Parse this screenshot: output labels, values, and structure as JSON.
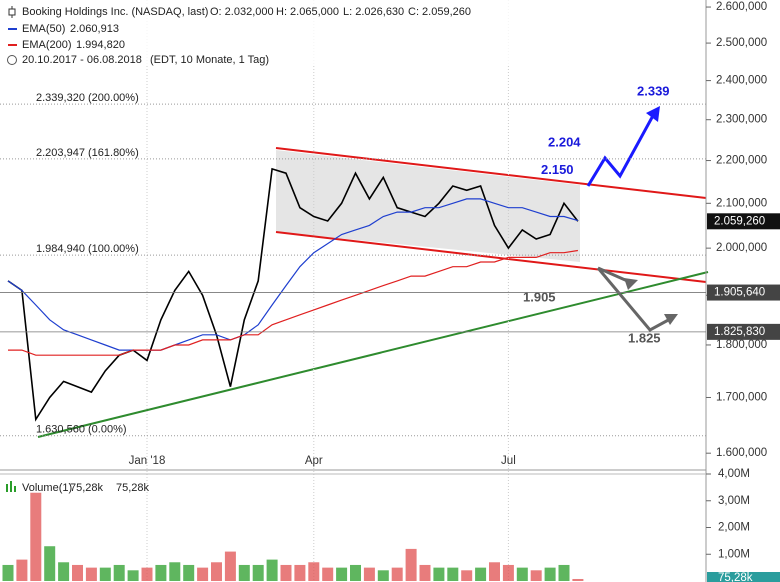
{
  "chart_data": [
    {
      "type": "line",
      "log_scale": true,
      "header": {
        "ohlc": [
          "O: 2.032,000",
          "H: 2.065,000",
          "L: 2.026,630",
          "C: 2.059,260"
        ],
        "period": "20.10.2017 - 06.08.2018",
        "details": "(EDT, 10 Monate, 1 Tag)"
      },
      "categories": [
        null,
        null,
        null,
        null,
        null,
        null,
        null,
        null,
        null,
        null,
        "Jan '18",
        null,
        null,
        null,
        null,
        null,
        null,
        null,
        null,
        null,
        null,
        null,
        "Apr",
        null,
        null,
        null,
        null,
        null,
        null,
        null,
        null,
        null,
        null,
        null,
        null,
        null,
        "Jul",
        null,
        null,
        null,
        null,
        null
      ],
      "series": [
        {
          "name": "Booking Holdings Inc. (NASDAQ, last)",
          "color": "#000000",
          "values": [
            1930000,
            1910000,
            1660000,
            1700000,
            1730000,
            1720000,
            1710000,
            1750000,
            1780000,
            1790000,
            1770000,
            1850000,
            1910000,
            1950000,
            1900000,
            1820000,
            1720000,
            1850000,
            1930000,
            2180000,
            2170000,
            2090000,
            2070000,
            2060000,
            2100000,
            2170000,
            2110000,
            2160000,
            2090000,
            2080000,
            2070000,
            2100000,
            2140000,
            2130000,
            2140000,
            2050000,
            2000000,
            2040000,
            2020000,
            2030000,
            2100000,
            2059260
          ]
        },
        {
          "name": "EMA(50)",
          "last_label": "2.060,913",
          "color": "#1f3fcf",
          "values": [
            1930000,
            1910000,
            1880000,
            1850000,
            1830000,
            1820000,
            1810000,
            1800000,
            1790000,
            1790000,
            1790000,
            1790000,
            1800000,
            1810000,
            1820000,
            1820000,
            1810000,
            1820000,
            1840000,
            1880000,
            1920000,
            1960000,
            1990000,
            2010000,
            2030000,
            2040000,
            2050000,
            2070000,
            2080000,
            2080000,
            2090000,
            2090000,
            2100000,
            2110000,
            2110000,
            2100000,
            2090000,
            2090000,
            2080000,
            2070000,
            2070000,
            2060913
          ]
        },
        {
          "name": "EMA(200)",
          "last_label": "1.994,820",
          "color": "#e02020",
          "values": [
            1790000,
            1790000,
            1780000,
            1780000,
            1780000,
            1780000,
            1780000,
            1780000,
            1780000,
            1790000,
            1790000,
            1790000,
            1800000,
            1800000,
            1810000,
            1810000,
            1810000,
            1820000,
            1820000,
            1840000,
            1850000,
            1860000,
            1870000,
            1880000,
            1890000,
            1900000,
            1910000,
            1920000,
            1930000,
            1940000,
            1940000,
            1950000,
            1960000,
            1960000,
            1970000,
            1970000,
            1980000,
            1980000,
            1980000,
            1990000,
            1990000,
            1994820
          ]
        }
      ],
      "ylim": [
        1571000,
        2620000
      ],
      "yticks": [
        {
          "value": 1600000,
          "label": "1.600,000"
        },
        {
          "value": 1700000,
          "label": "1.700,000"
        },
        {
          "value": 1800000,
          "label": "1.800,000"
        },
        {
          "value": 1900000,
          "label": "1.900,000"
        },
        {
          "value": 2000000,
          "label": "2.000,000"
        },
        {
          "value": 2100000,
          "label": "2.100,000"
        },
        {
          "value": 2200000,
          "label": "2.200,000"
        },
        {
          "value": 2300000,
          "label": "2.300,000"
        },
        {
          "value": 2400000,
          "label": "2.400,000"
        },
        {
          "value": 2500000,
          "label": "2.500,000"
        },
        {
          "value": 2600000,
          "label": "2.600,000"
        }
      ],
      "levels": [
        {
          "value": 2339320,
          "label": "2.339,320 (200.00%)"
        },
        {
          "value": 2203947,
          "label": "2.203,947 (161.80%)"
        },
        {
          "value": 1984940,
          "label": "1.984,940 (100.00%)"
        },
        {
          "value": 1630560,
          "label": "1.630,560 (0.00%)"
        }
      ],
      "tags": [
        {
          "value": 2059260,
          "label": "2.059,260",
          "color": "#111111"
        },
        {
          "value": 1905640,
          "label": "1.905,640",
          "color": "#444444"
        },
        {
          "value": 1825830,
          "label": "1.825,830",
          "color": "#444444"
        }
      ],
      "annotations": [
        {
          "value": 2339000,
          "label": "2.339",
          "color": "#1a1adb"
        },
        {
          "value": 2204000,
          "label": "2.204",
          "color": "#1a1adb"
        },
        {
          "value": 2150000,
          "label": "2.150",
          "color": "#1a1adb"
        },
        {
          "value": 1905000,
          "label": "1.905",
          "color": "#555555"
        },
        {
          "value": 1825000,
          "label": "1.825",
          "color": "#555555"
        }
      ]
    },
    {
      "type": "bar",
      "series": [
        {
          "name": "Volume(1)"
        }
      ],
      "values": [
        0.6,
        0.8,
        3.3,
        1.3,
        0.7,
        0.6,
        0.5,
        0.5,
        0.6,
        0.4,
        0.5,
        0.6,
        0.7,
        0.6,
        0.5,
        0.7,
        1.1,
        0.6,
        0.6,
        0.8,
        0.6,
        0.6,
        0.7,
        0.5,
        0.5,
        0.6,
        0.5,
        0.4,
        0.5,
        1.2,
        0.6,
        0.5,
        0.5,
        0.4,
        0.5,
        0.7,
        0.6,
        0.5,
        0.4,
        0.5,
        0.6,
        0.07528
      ],
      "value_labels": [
        null,
        null,
        null,
        null,
        null,
        null,
        null,
        null,
        null,
        null,
        null,
        null,
        null,
        null,
        null,
        null,
        null,
        null,
        null,
        null,
        null,
        null,
        null,
        null,
        null,
        null,
        null,
        null,
        null,
        null,
        null,
        null,
        null,
        null,
        null,
        null,
        null,
        null,
        null,
        null,
        null,
        "75,28k"
      ],
      "colors": [
        "#2a9d2a",
        "#e05050"
      ],
      "ylim": [
        0,
        4.15
      ],
      "yticks": [
        {
          "value": 1,
          "label": "1,00M"
        },
        {
          "value": 2,
          "label": "2,00M"
        },
        {
          "value": 3,
          "label": "3,00M"
        },
        {
          "value": 4,
          "label": "4,00M"
        }
      ]
    }
  ]
}
